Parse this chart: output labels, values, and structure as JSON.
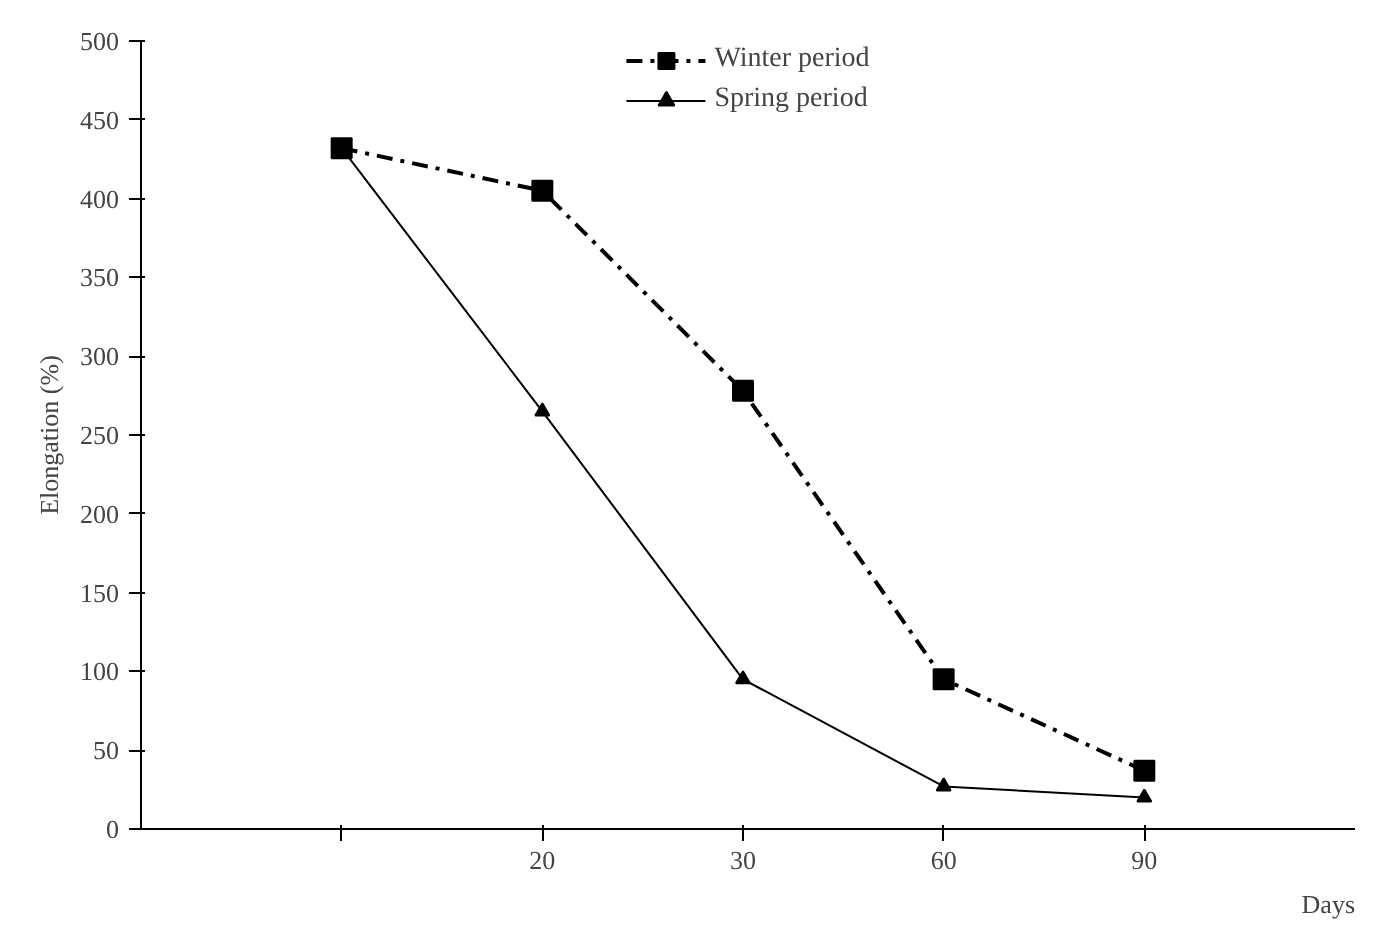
{
  "chart_data": {
    "type": "line",
    "xlabel": "Days",
    "ylabel": "Elongation (%)",
    "categories": [
      null,
      "20",
      "30",
      "60",
      "90"
    ],
    "ylim": [
      0,
      500
    ],
    "yticks": [
      0,
      50,
      100,
      150,
      200,
      250,
      300,
      350,
      400,
      450,
      500
    ],
    "grid": false,
    "legend": "top",
    "series": [
      {
        "name": "Winter period",
        "color": "#000000",
        "values": [
          432,
          405,
          278,
          95,
          37
        ],
        "marker": "square",
        "line_style": "dashed"
      },
      {
        "name": "Spring period",
        "color": "#000000",
        "values": [
          432,
          265,
          95,
          27,
          20
        ],
        "marker": "triangle",
        "line_style": "solid"
      }
    ]
  }
}
